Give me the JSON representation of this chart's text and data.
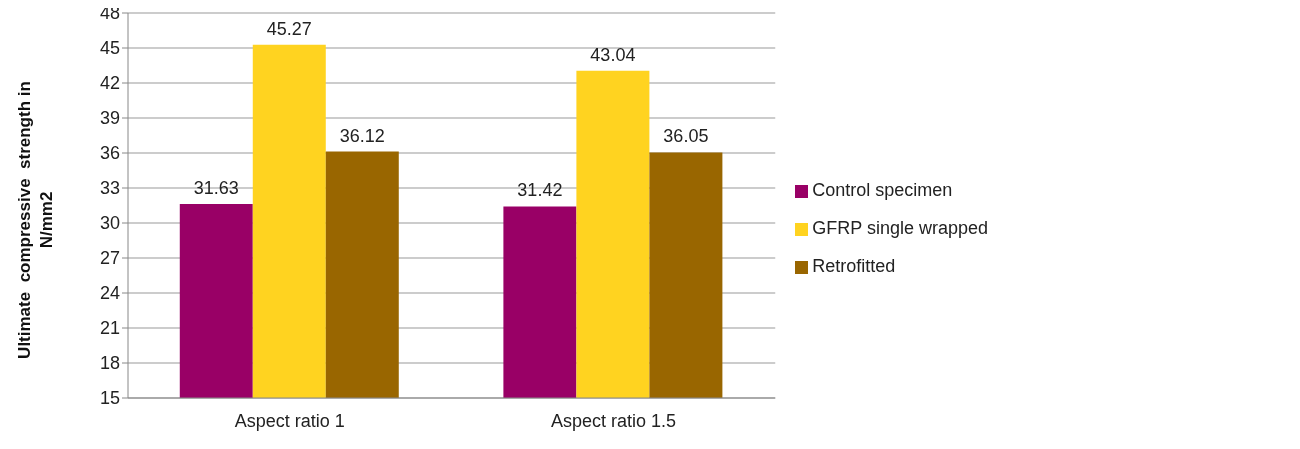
{
  "chart_data": {
    "type": "bar",
    "ylabel": "Ultimate  compressive  strength in N/mm2",
    "categories": [
      "Aspect ratio 1",
      "Aspect ratio 1.5"
    ],
    "series": [
      {
        "name": "Control specimen",
        "color": "#990066",
        "values": [
          31.63,
          31.42
        ]
      },
      {
        "name": "GFRP single wrapped",
        "color": "#ffd320",
        "values": [
          45.27,
          43.04
        ]
      },
      {
        "name": "Retrofitted",
        "color": "#996600",
        "values": [
          36.12,
          36.05
        ]
      }
    ],
    "ylim": [
      15,
      48
    ],
    "yticks": [
      15,
      18,
      21,
      24,
      27,
      30,
      33,
      36,
      39,
      42,
      45,
      48
    ],
    "grid": "y",
    "legend": "right",
    "data_labels": true
  }
}
